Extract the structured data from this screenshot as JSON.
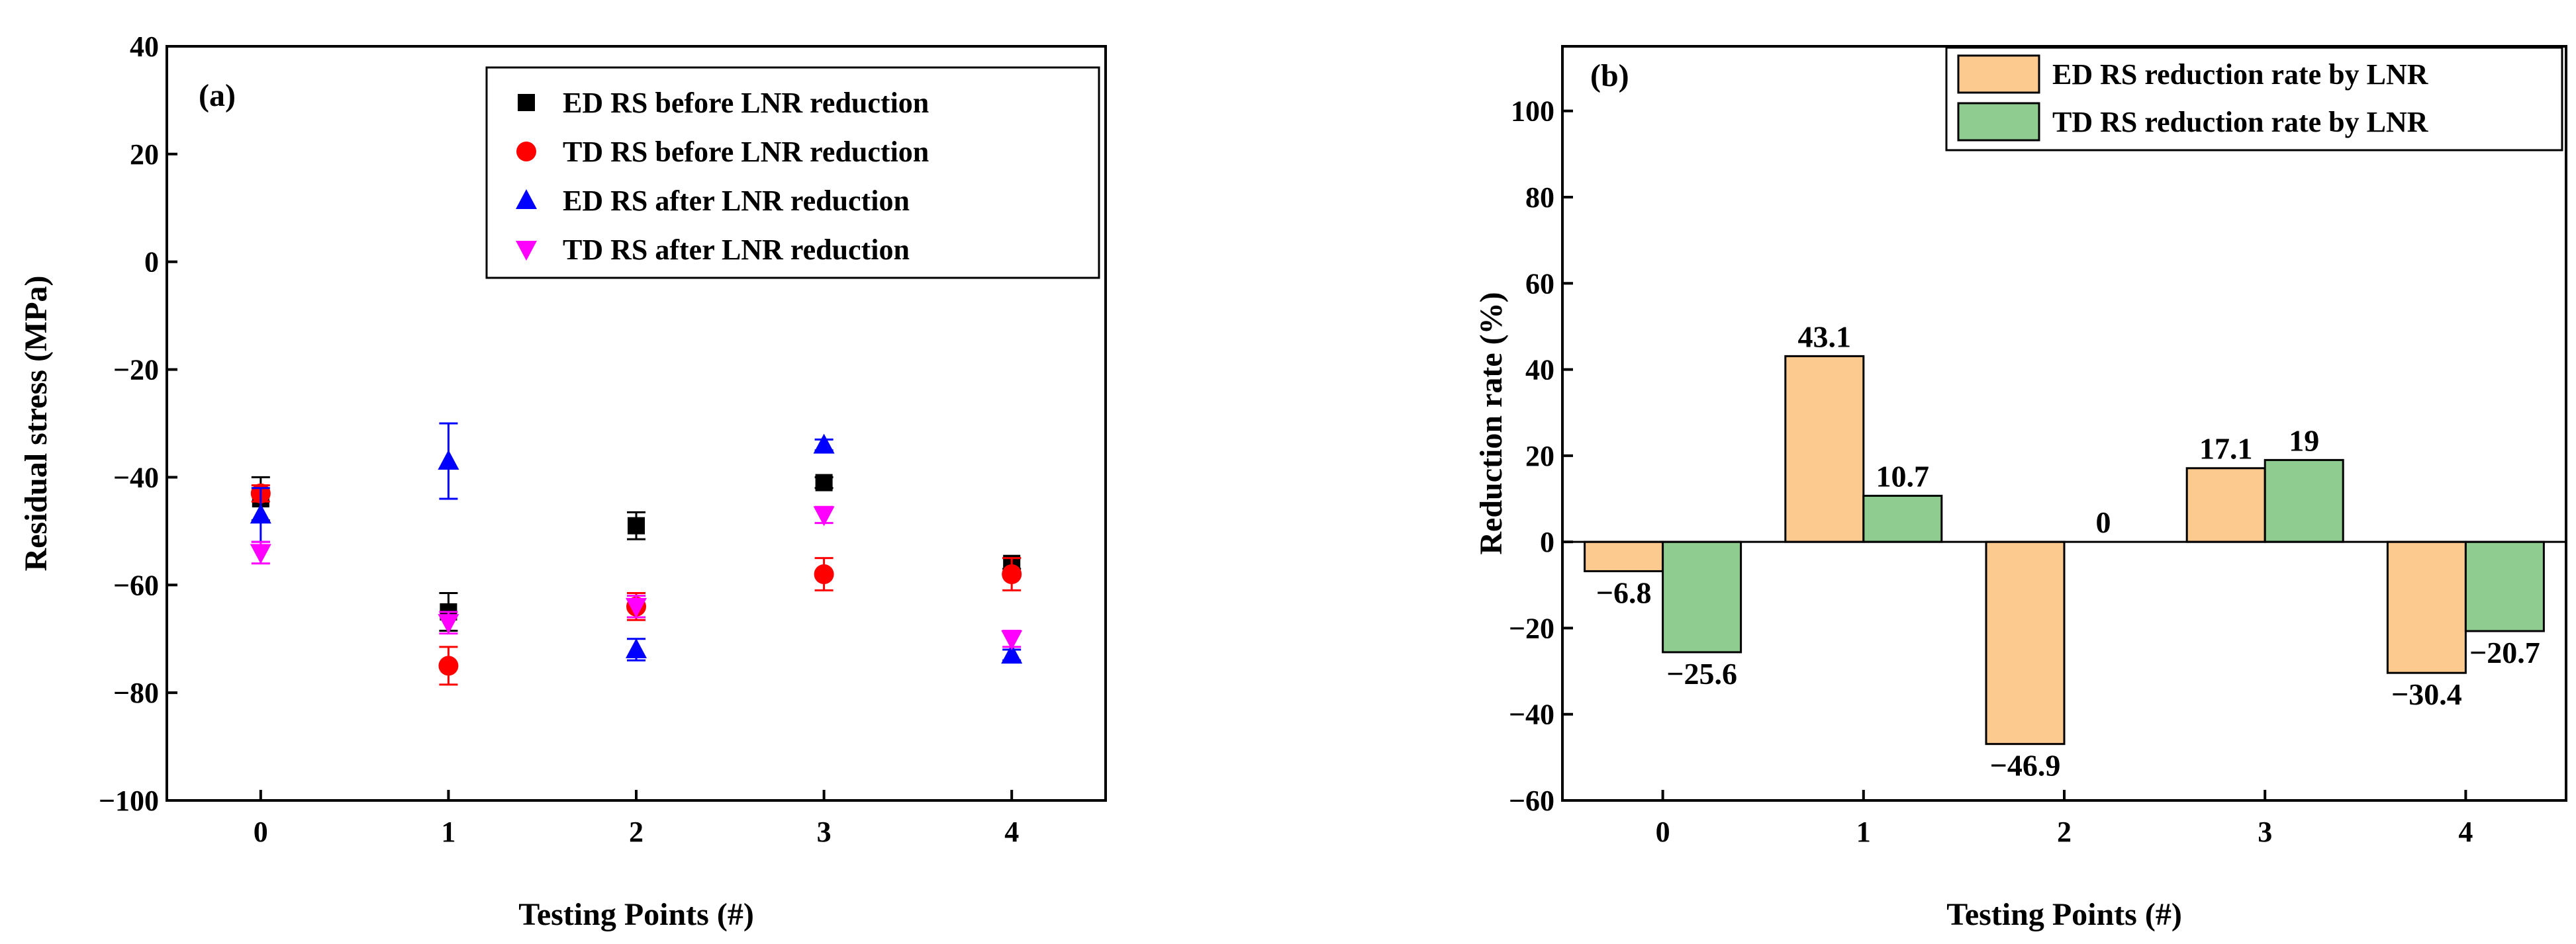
{
  "chart_data": [
    {
      "type": "scatter",
      "panel_label": "(a)",
      "xlabel": "Testing Points (#)",
      "ylabel": "Residual stress (MPa)",
      "ylim": [
        -100,
        40
      ],
      "xlim": [
        -0.5,
        4.5
      ],
      "xticks": [
        0,
        1,
        2,
        3,
        4
      ],
      "yticks": [
        -100,
        -80,
        -60,
        -40,
        -20,
        0,
        20,
        40
      ],
      "ytick_labels": [
        "−100",
        "−80",
        "−60",
        "−40",
        "−20",
        "0",
        "20",
        "40"
      ],
      "legend_position": "top-right",
      "series": [
        {
          "name": "ED RS before LNR reduction",
          "color": "#000000",
          "marker": "square",
          "x": [
            0,
            1,
            2,
            3,
            4
          ],
          "y": [
            -44,
            -65,
            -49,
            -41,
            -56
          ],
          "err": [
            4,
            3.5,
            2.5,
            1,
            1
          ]
        },
        {
          "name": "TD RS before LNR reduction",
          "color": "#ff0000",
          "marker": "circle",
          "x": [
            0,
            1,
            2,
            3,
            4
          ],
          "y": [
            -43,
            -75,
            -64,
            -58,
            -58
          ],
          "err": [
            1.5,
            3.5,
            2.5,
            3,
            3
          ]
        },
        {
          "name": "ED RS after LNR reduction",
          "color": "#0000ff",
          "marker": "triangle-up",
          "x": [
            0,
            1,
            2,
            3,
            4
          ],
          "y": [
            -47,
            -37,
            -72,
            -34,
            -73
          ],
          "err": [
            5,
            7,
            2,
            1,
            1
          ]
        },
        {
          "name": "TD RS after LNR reduction",
          "color": "#ff00ff",
          "marker": "triangle-down",
          "x": [
            0,
            1,
            2,
            3,
            4
          ],
          "y": [
            -54,
            -67,
            -64,
            -47,
            -70
          ],
          "err": [
            2,
            2,
            2,
            1.5,
            1.5
          ]
        }
      ]
    },
    {
      "type": "bar",
      "panel_label": "(b)",
      "xlabel": "Testing Points (#)",
      "ylabel": "Reduction rate (%)",
      "ylim": [
        -60,
        115
      ],
      "xlim": [
        -0.5,
        4.5
      ],
      "categories": [
        "0",
        "1",
        "2",
        "3",
        "4"
      ],
      "yticks": [
        -60,
        -40,
        -20,
        0,
        20,
        40,
        60,
        80,
        100
      ],
      "ytick_labels": [
        "−60",
        "−40",
        "−20",
        "0",
        "20",
        "40",
        "60",
        "80",
        "100"
      ],
      "legend_position": "top-right",
      "series": [
        {
          "name": "ED RS reduction rate by LNR",
          "color": "#fcc98f",
          "values": [
            -6.8,
            43.1,
            -46.9,
            17.1,
            -30.4
          ],
          "labels": [
            "−6.8",
            "43.1",
            "−46.9",
            "17.1",
            "−30.4"
          ]
        },
        {
          "name": "TD RS reduction rate by LNR",
          "color": "#8fcc8f",
          "values": [
            -25.6,
            10.7,
            0,
            19,
            -20.7
          ],
          "labels": [
            "−25.6",
            "10.7",
            "0",
            "19",
            "−20.7"
          ]
        }
      ]
    }
  ]
}
